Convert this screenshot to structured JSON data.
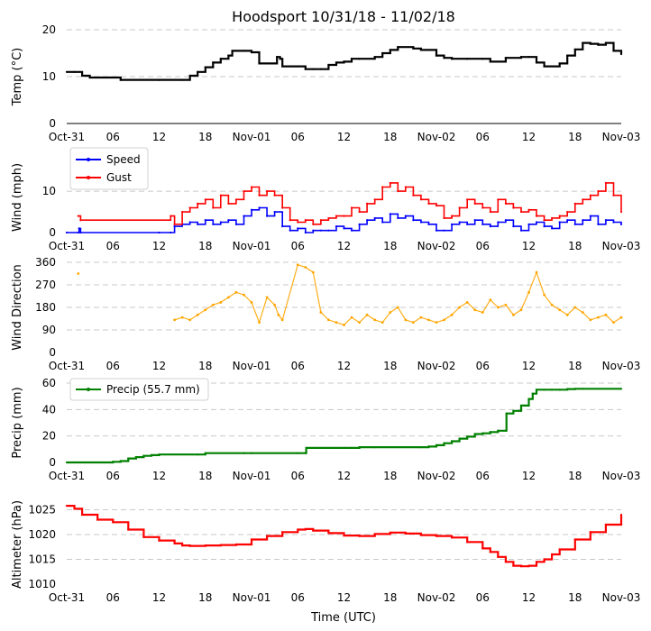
{
  "title": "Hoodsport 10/31/18 - 11/02/18",
  "xlabel": "Time (UTC)",
  "xticks": [
    "Oct-31",
    "06",
    "12",
    "18",
    "Nov-01",
    "06",
    "12",
    "18",
    "Nov-02",
    "06",
    "12",
    "18",
    "Nov-03"
  ],
  "chart_data": [
    {
      "type": "line",
      "name": "temperature",
      "ylabel": "Temp ($^\\circ$C)",
      "ylabel_display": "Temp (°C)",
      "ylim": [
        0,
        20
      ],
      "yticks": [
        "0",
        "10",
        "20"
      ],
      "color": "#000000",
      "x_hours": [
        0,
        1,
        2,
        3,
        6,
        7,
        12,
        15,
        16,
        17,
        18,
        19,
        20,
        21,
        21.5,
        22,
        23,
        24,
        25,
        26,
        27,
        27.3,
        27.7,
        28,
        29,
        30,
        31,
        32,
        33,
        34,
        35,
        36,
        37,
        38,
        40,
        41,
        42,
        43,
        45,
        46,
        48,
        49,
        50,
        52,
        54,
        55,
        57,
        59,
        60,
        61,
        62,
        63,
        64,
        65,
        66,
        67,
        68,
        69,
        70,
        71,
        72
      ],
      "values": [
        11,
        11,
        10.2,
        9.8,
        9.8,
        9.3,
        9.3,
        9.3,
        10.2,
        11,
        12,
        13,
        13.8,
        14.5,
        15.5,
        15.5,
        15.5,
        15.2,
        12.8,
        12.8,
        12.8,
        14.2,
        13.8,
        12.2,
        12.2,
        12.2,
        11.6,
        11.6,
        11.6,
        12.5,
        13,
        13.2,
        13.8,
        13.8,
        14.2,
        15,
        15.7,
        16.3,
        16,
        15.7,
        14.5,
        14,
        13.8,
        13.8,
        13.8,
        13.2,
        14,
        14.2,
        14.2,
        13,
        12.2,
        12.2,
        12.8,
        14.5,
        15.8,
        17.2,
        17,
        16.8,
        17.2,
        15.5,
        14.8
      ]
    },
    {
      "type": "line",
      "name": "wind",
      "ylabel": "Wind (mph)",
      "ylim": [
        0,
        17
      ],
      "yticks": [
        "0",
        "10"
      ],
      "legend": {
        "placement": "upper-left"
      },
      "series": [
        {
          "name": "Speed",
          "color": "#0000ff",
          "x_hours": [
            0,
            1.5,
            1.6,
            1.8,
            12,
            13.5,
            14,
            15,
            16,
            17,
            18,
            19,
            20,
            21,
            22,
            23,
            24,
            25,
            26,
            27,
            28,
            29,
            30,
            31,
            32,
            33,
            34,
            35,
            36,
            37,
            38,
            39,
            40,
            41,
            42,
            43,
            44,
            45,
            46,
            47,
            48,
            49,
            50,
            51,
            52,
            53,
            54,
            55,
            56,
            57,
            58,
            59,
            60,
            61,
            62,
            63,
            64,
            65,
            66,
            67,
            68,
            69,
            70,
            71,
            72
          ],
          "values": [
            0,
            0,
            1,
            0,
            0,
            0,
            1.5,
            2,
            2.5,
            2,
            3,
            2,
            2.5,
            3,
            2,
            4,
            5.5,
            6,
            4,
            5,
            1.5,
            0.5,
            1,
            0,
            0.5,
            0.5,
            0.5,
            1.5,
            1,
            0.5,
            2,
            3,
            3.5,
            2.5,
            4.5,
            3.5,
            4,
            3,
            2.5,
            2,
            0.5,
            0.5,
            2,
            2.5,
            2,
            3,
            2,
            1.5,
            2.5,
            3,
            1.5,
            0.5,
            2,
            2.5,
            1.5,
            1,
            2.5,
            3,
            2,
            3,
            4,
            2,
            3,
            2.5,
            2
          ]
        },
        {
          "name": "Gust",
          "color": "#ff0000",
          "x_hours": [
            1.5,
            1.8,
            13.5,
            14,
            15,
            16,
            17,
            18,
            19,
            20,
            21,
            22,
            23,
            24,
            25,
            26,
            27,
            28,
            29,
            30,
            31,
            32,
            33,
            34,
            35,
            36,
            37,
            38,
            39,
            40,
            41,
            42,
            43,
            44,
            45,
            46,
            47,
            48,
            49,
            50,
            51,
            52,
            53,
            54,
            55,
            56,
            57,
            58,
            59,
            60,
            61,
            62,
            63,
            64,
            65,
            66,
            67,
            68,
            69,
            70,
            71,
            72
          ],
          "values": [
            4,
            3,
            4,
            2,
            5,
            6,
            7,
            8,
            6,
            9,
            7,
            8,
            10,
            11,
            9,
            10,
            9,
            6,
            3,
            2.5,
            3,
            2,
            3,
            3.5,
            4,
            4,
            6,
            5,
            7,
            8,
            11,
            12,
            10,
            11,
            9,
            8,
            7,
            6.5,
            3.5,
            4,
            6,
            8,
            7,
            6,
            5,
            8,
            7,
            6,
            5,
            5.5,
            4,
            3,
            3.5,
            4,
            5,
            7,
            8,
            9,
            10,
            12,
            9,
            5
          ]
        }
      ]
    },
    {
      "type": "scatter",
      "name": "wind-direction",
      "ylabel": "Wind Direction",
      "ylim": [
        0,
        360
      ],
      "yticks": [
        "0",
        "90",
        "180",
        "270",
        "360"
      ],
      "color": "#ffa500",
      "x_hours": [
        1.5,
        14,
        15,
        16,
        17,
        18,
        19,
        20,
        21,
        22,
        23,
        24,
        25,
        26,
        27,
        27.5,
        28,
        30,
        31,
        32,
        33,
        34,
        35,
        36,
        37,
        38,
        39,
        40,
        41,
        42,
        43,
        44,
        45,
        46,
        47,
        48,
        49,
        50,
        51,
        52,
        53,
        54,
        55,
        56,
        57,
        58,
        59,
        60,
        61,
        62,
        63,
        64,
        65,
        66,
        67,
        68,
        69,
        70,
        71,
        72
      ],
      "values": [
        315,
        130,
        140,
        130,
        150,
        170,
        190,
        200,
        220,
        240,
        230,
        200,
        120,
        220,
        190,
        150,
        130,
        350,
        340,
        320,
        160,
        130,
        120,
        110,
        140,
        120,
        150,
        130,
        120,
        160,
        180,
        130,
        120,
        140,
        130,
        120,
        130,
        150,
        180,
        200,
        170,
        160,
        210,
        180,
        190,
        150,
        170,
        240,
        320,
        230,
        190,
        170,
        150,
        180,
        160,
        130,
        140,
        150,
        120,
        140
      ]
    },
    {
      "type": "line",
      "name": "precipitation",
      "ylabel": "Precip (mm)",
      "ylim": [
        0,
        60
      ],
      "yticks": [
        "0",
        "20",
        "40",
        "60"
      ],
      "color": "#008000",
      "legend": {
        "placement": "upper-left"
      },
      "series_name": "Precip (55.7 mm)",
      "x_hours": [
        0,
        4,
        6,
        7,
        8,
        9,
        10,
        11,
        12,
        17,
        18,
        23,
        24,
        30,
        31,
        31.1,
        36,
        37,
        38,
        40,
        46,
        47,
        48,
        49,
        50,
        51,
        52,
        53,
        54,
        55,
        56,
        57,
        57.1,
        58,
        59,
        60,
        60.5,
        61,
        62,
        63,
        64,
        65,
        66,
        67,
        72
      ],
      "values": [
        0,
        0,
        0.5,
        1,
        3,
        4,
        5,
        5.5,
        6,
        6,
        7,
        7,
        7,
        7,
        7,
        11,
        11,
        11,
        11.5,
        11.5,
        11.5,
        12,
        13,
        14.5,
        16,
        18,
        19.5,
        21.5,
        22,
        23,
        24,
        24,
        37,
        39,
        43,
        48,
        52,
        55,
        55,
        55,
        55,
        55.5,
        55.7,
        55.7,
        55.7
      ]
    },
    {
      "type": "line",
      "name": "altimeter",
      "ylabel": "Altimeter (hPa)",
      "ylim": [
        1010,
        1026
      ],
      "yticks": [
        "1010",
        "1015",
        "1020",
        "1025"
      ],
      "color": "#ff0000",
      "x_hours": [
        0,
        1,
        2,
        4,
        6,
        8,
        10,
        12,
        14,
        15,
        16,
        18,
        20,
        22,
        24,
        26,
        28,
        30,
        31,
        32,
        34,
        36,
        38,
        40,
        42,
        44,
        46,
        48,
        50,
        52,
        54,
        55,
        56,
        57,
        58,
        59,
        60,
        61,
        62,
        63,
        64,
        66,
        68,
        70,
        72
      ],
      "values": [
        1025.8,
        1025.2,
        1024,
        1023,
        1022.5,
        1021,
        1019.5,
        1018.8,
        1018.2,
        1017.8,
        1017.7,
        1017.8,
        1017.9,
        1018,
        1019,
        1019.7,
        1020.5,
        1021,
        1021.1,
        1020.8,
        1020.3,
        1019.8,
        1019.7,
        1020.1,
        1020.4,
        1020.2,
        1019.9,
        1019.7,
        1019.4,
        1018.5,
        1017.2,
        1016.5,
        1015.5,
        1014.5,
        1013.7,
        1013.6,
        1013.7,
        1014.5,
        1015,
        1016,
        1017,
        1019,
        1020.5,
        1022,
        1024
      ]
    }
  ]
}
